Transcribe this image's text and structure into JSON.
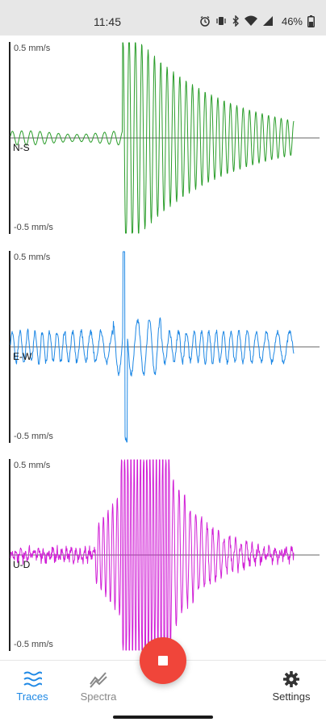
{
  "status_bar": {
    "time": "11:45",
    "battery": "46%",
    "icons": [
      "alarm-icon",
      "vibrate-icon",
      "bluetooth-icon",
      "wifi-icon",
      "cellular-icon",
      "battery-icon"
    ]
  },
  "traces": [
    {
      "label": "N-S",
      "top_scale": "0.5 mm/s",
      "bottom_scale": "-0.5 mm/s",
      "color": "#2a9d2a",
      "shape": "ns"
    },
    {
      "label": "E-W",
      "top_scale": "0.5 mm/s",
      "bottom_scale": "-0.5 mm/s",
      "color": "#1e88e5",
      "shape": "ew"
    },
    {
      "label": "U-D",
      "top_scale": "0.5 mm/s",
      "bottom_scale": "-0.5 mm/s",
      "color": "#d11fd6",
      "shape": "ud"
    }
  ],
  "nav": {
    "traces_label": "Traces",
    "spectra_label": "Spectra",
    "settings_label": "Settings"
  },
  "colors": {
    "accent": "#1e88e5",
    "record": "#f0453a"
  }
}
